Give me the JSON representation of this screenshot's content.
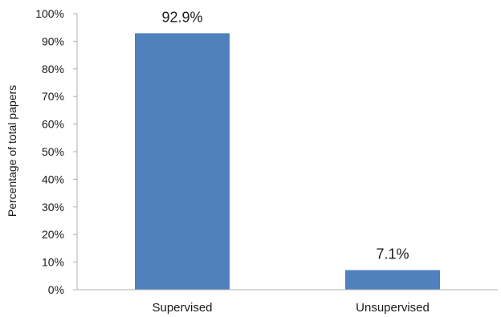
{
  "chart_data": {
    "type": "bar",
    "categories": [
      "Supervised",
      "Unsupervised"
    ],
    "values": [
      92.9,
      7.1
    ],
    "data_labels": [
      "92.9%",
      "7.1%"
    ],
    "ylabel": "Percentage of total papers",
    "xlabel": "",
    "ylim": [
      0,
      100
    ],
    "y_ticks": [
      0,
      10,
      20,
      30,
      40,
      50,
      60,
      70,
      80,
      90,
      100
    ],
    "y_tick_labels": [
      "0%",
      "10%",
      "20%",
      "30%",
      "40%",
      "50%",
      "60%",
      "70%",
      "80%",
      "90%",
      "100%"
    ],
    "grid": false,
    "legend": "none",
    "bar_color": "#4f81bd",
    "axis_color": "#b0b0b0"
  }
}
